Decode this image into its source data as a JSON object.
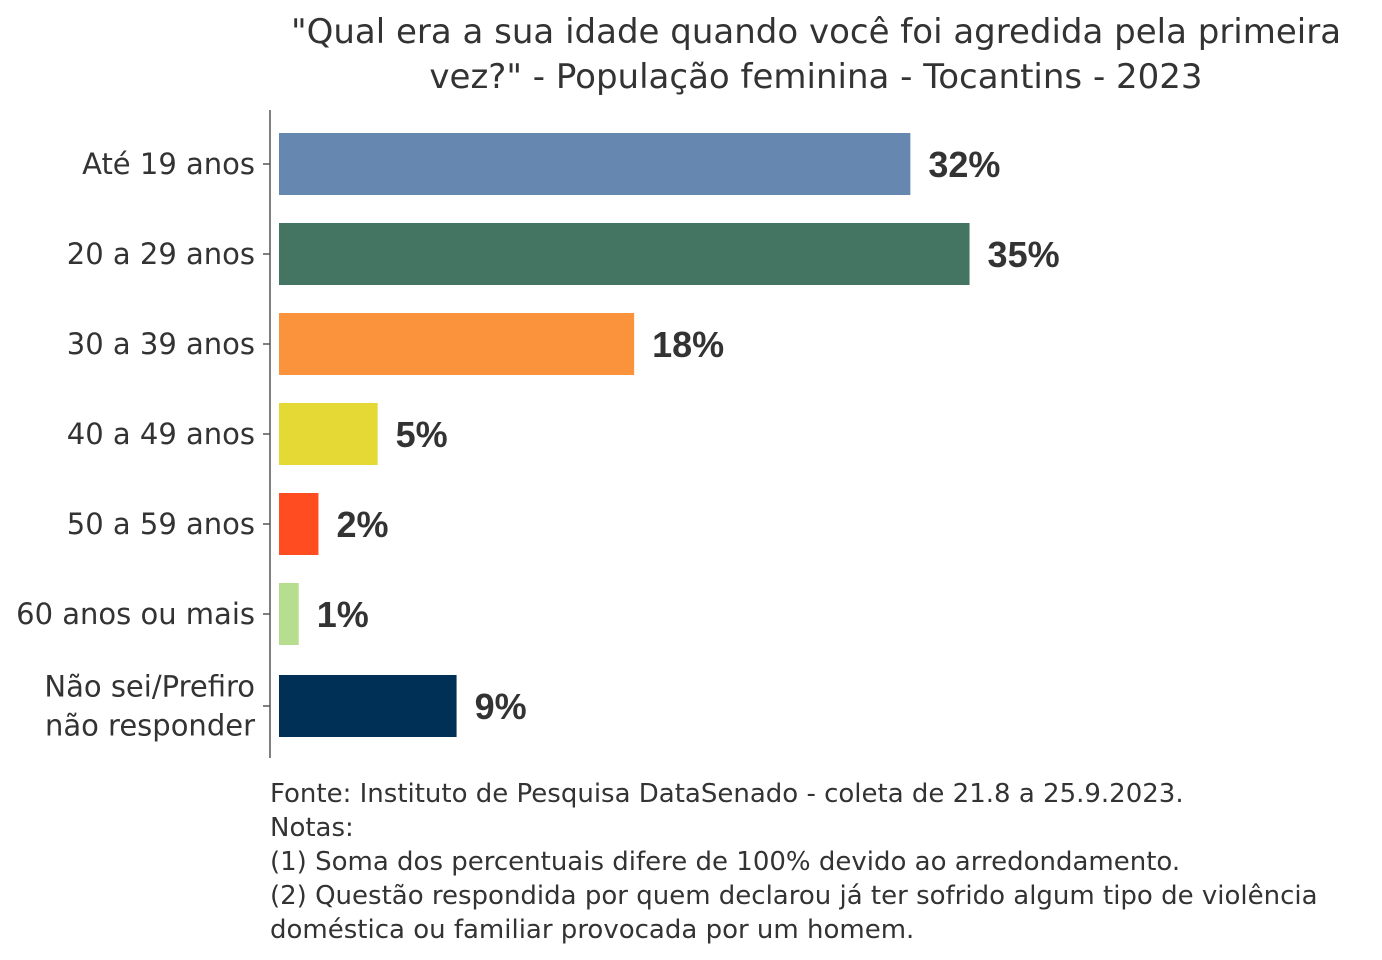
{
  "chart_data": {
    "type": "bar",
    "orientation": "horizontal",
    "title_lines": [
      "\"Qual era a sua idade quando você foi agredida pela primeira",
      "vez?\" - População feminina - Tocantins - 2023"
    ],
    "categories": [
      [
        "Até 19 anos"
      ],
      [
        "20 a 29 anos"
      ],
      [
        "30 a 39 anos"
      ],
      [
        "40 a 49 anos"
      ],
      [
        "50 a 59 anos"
      ],
      [
        "60 anos ou mais"
      ],
      [
        "Não sei/Prefiro",
        "não responder"
      ]
    ],
    "values": [
      32,
      35,
      18,
      5,
      2,
      1,
      9
    ],
    "value_labels": [
      "32%",
      "35%",
      "18%",
      "5%",
      "2%",
      "1%",
      "9%"
    ],
    "colors": [
      "#6688b0",
      "#447563",
      "#fb923c",
      "#e5d935",
      "#ff4d21",
      "#b7dd8f",
      "#003056"
    ],
    "xlim": [
      0,
      35
    ],
    "xlabel": "",
    "ylabel": "",
    "grid": false,
    "legend": "none"
  },
  "notes": [
    "Fonte: Instituto de Pesquisa DataSenado - coleta de 21.8 a 25.9.2023.",
    "Notas:",
    "(1) Soma dos percentuais difere de 100% devido ao arredondamento.",
    "(2) Questão respondida por quem declarou já ter sofrido algum tipo de violência",
    "doméstica ou familiar provocada por um homem."
  ]
}
